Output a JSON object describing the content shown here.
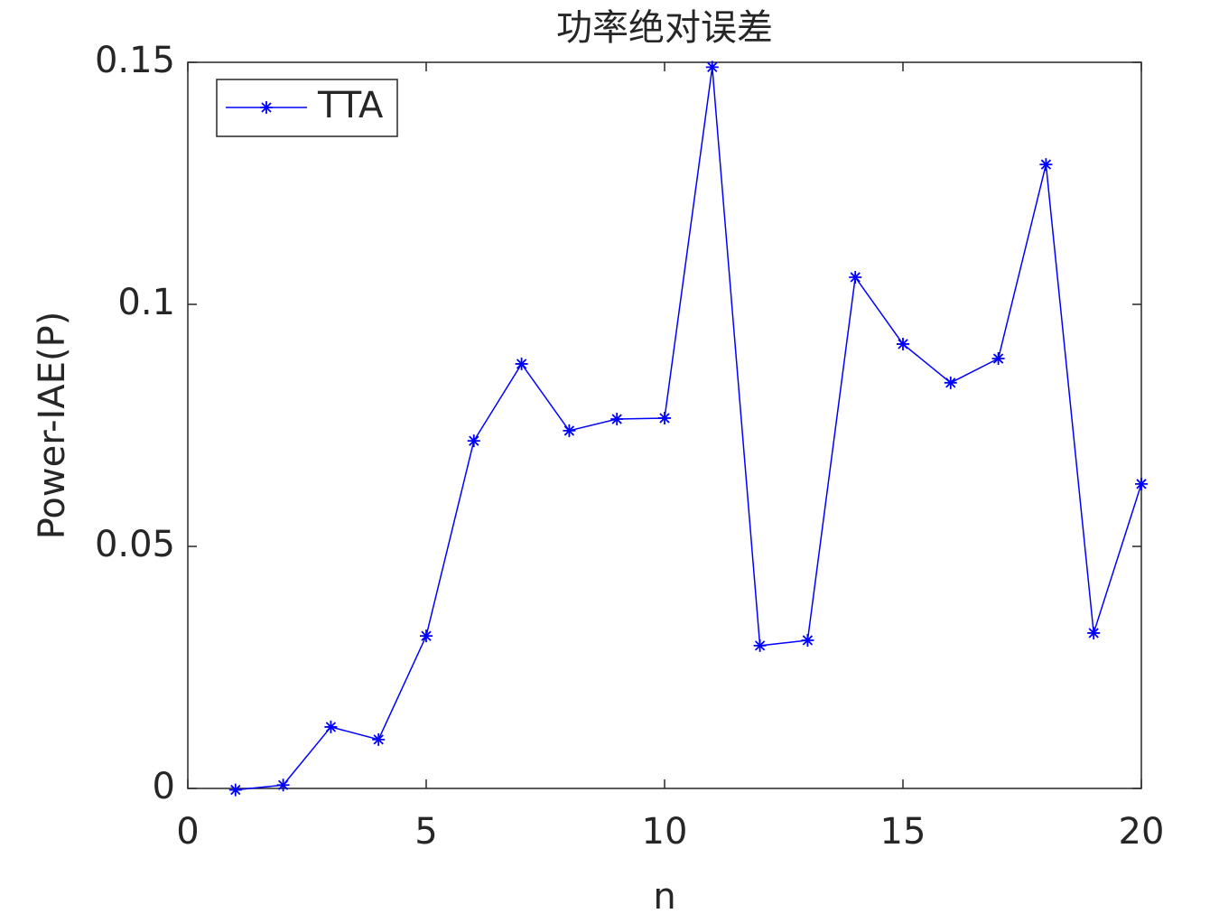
{
  "chart_data": {
    "type": "line",
    "title": "功率绝对误差",
    "x_label": "n",
    "y_label": "Power-IAE(P)",
    "x": [
      1,
      2,
      3,
      4,
      5,
      6,
      7,
      8,
      9,
      10,
      11,
      12,
      13,
      14,
      15,
      16,
      17,
      18,
      19,
      20
    ],
    "series": [
      {
        "name": "TTA",
        "color": "#0000ff",
        "marker": "asterisk",
        "values": [
          -0.0003,
          0.0007,
          0.0127,
          0.0101,
          0.0315,
          0.0718,
          0.0877,
          0.0739,
          0.0763,
          0.0765,
          0.149,
          0.0295,
          0.0306,
          0.1056,
          0.0918,
          0.0838,
          0.0888,
          0.1289,
          0.0321,
          0.0629
        ]
      }
    ],
    "xlim": [
      0,
      20
    ],
    "xticks": [
      0,
      5,
      10,
      15,
      20
    ],
    "ylim": [
      0,
      0.15
    ],
    "yticks": [
      0,
      0.05,
      0.1,
      0.15
    ],
    "grid": false,
    "legend": "upper-left"
  }
}
